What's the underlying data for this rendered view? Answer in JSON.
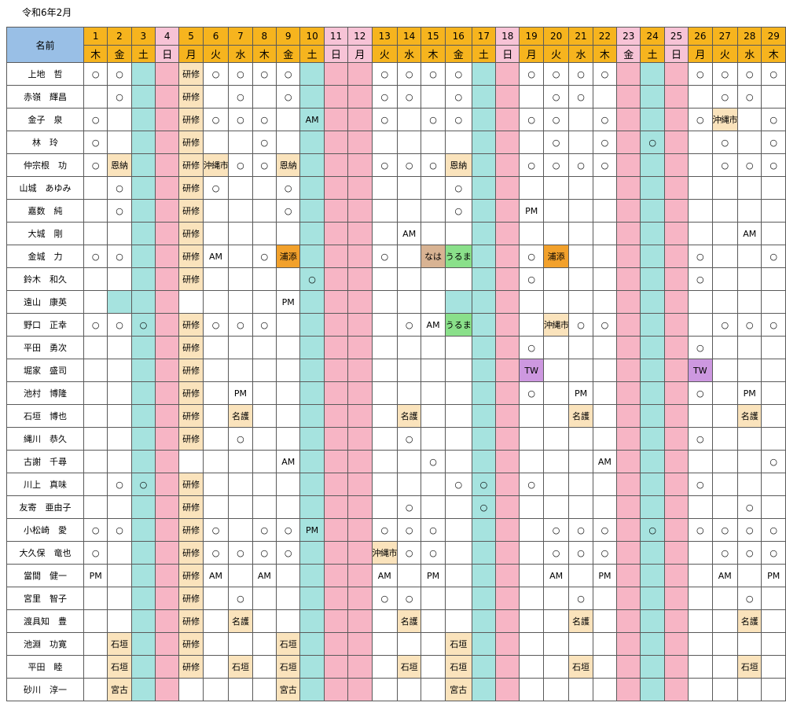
{
  "title": "令和6年2月",
  "header_label": "名前",
  "days": [
    {
      "num": "1",
      "wd": "木"
    },
    {
      "num": "2",
      "wd": "金"
    },
    {
      "num": "3",
      "wd": "土",
      "type": "sat"
    },
    {
      "num": "4",
      "wd": "日",
      "type": "sun"
    },
    {
      "num": "5",
      "wd": "月"
    },
    {
      "num": "6",
      "wd": "火"
    },
    {
      "num": "7",
      "wd": "水"
    },
    {
      "num": "8",
      "wd": "木"
    },
    {
      "num": "9",
      "wd": "金"
    },
    {
      "num": "10",
      "wd": "土",
      "type": "sat"
    },
    {
      "num": "11",
      "wd": "日",
      "type": "sun"
    },
    {
      "num": "12",
      "wd": "月",
      "type": "sun"
    },
    {
      "num": "13",
      "wd": "火"
    },
    {
      "num": "14",
      "wd": "水"
    },
    {
      "num": "15",
      "wd": "木"
    },
    {
      "num": "16",
      "wd": "金"
    },
    {
      "num": "17",
      "wd": "土",
      "type": "sat"
    },
    {
      "num": "18",
      "wd": "日",
      "type": "sun"
    },
    {
      "num": "19",
      "wd": "月"
    },
    {
      "num": "20",
      "wd": "火"
    },
    {
      "num": "21",
      "wd": "水"
    },
    {
      "num": "22",
      "wd": "木"
    },
    {
      "num": "23",
      "wd": "金",
      "type": "sun"
    },
    {
      "num": "24",
      "wd": "土",
      "type": "sat"
    },
    {
      "num": "25",
      "wd": "日",
      "type": "sun"
    },
    {
      "num": "26",
      "wd": "月"
    },
    {
      "num": "27",
      "wd": "火"
    },
    {
      "num": "28",
      "wd": "水"
    },
    {
      "num": "29",
      "wd": "木"
    }
  ],
  "legend_colors": {
    "header": "#f6b41e",
    "name_header": "#99bfe6",
    "saturday": "#a6e3df",
    "holiday": "#f7b5c5",
    "training": "#fae3bc",
    "urasoe": "#f2a12c",
    "uruma": "#8ae08a",
    "naha": "#d8b393",
    "telework": "#cd98e0"
  },
  "rows": [
    {
      "name": "上地　哲",
      "cells": {
        "1": "○",
        "2": "○",
        "5": "研修",
        "6": "○",
        "7": "○",
        "8": "○",
        "9": "○",
        "13": "○",
        "14": "○",
        "15": "○",
        "16": "○",
        "19": "○",
        "20": "○",
        "21": "○",
        "22": "○",
        "26": "○",
        "27": "○",
        "28": "○",
        "29": "○"
      }
    },
    {
      "name": "赤嶺　輝昌",
      "cells": {
        "2": "○",
        "5": "研修",
        "7": "○",
        "9": "○",
        "13": "○",
        "14": "○",
        "16": "○",
        "20": "○",
        "21": "○",
        "27": "○",
        "28": "○"
      }
    },
    {
      "name": "金子　泉",
      "cells": {
        "1": "○",
        "5": "研修",
        "6": "○",
        "7": "○",
        "8": "○",
        "10": "AM",
        "13": "○",
        "15": "○",
        "16": "○",
        "19": "○",
        "20": "○",
        "22": "○",
        "26": "○",
        "27": "沖縄市",
        "29": "○"
      }
    },
    {
      "name": "林　玲",
      "cells": {
        "1": "○",
        "5": "研修",
        "8": "○",
        "20": "○",
        "22": "○",
        "24": "○",
        "27": "○",
        "29": "○"
      }
    },
    {
      "name": "仲宗根　功",
      "cells": {
        "1": "○",
        "2": "恩納",
        "5": "研修",
        "6": "沖縄市",
        "7": "○",
        "8": "○",
        "9": "恩納",
        "13": "○",
        "14": "○",
        "15": "○",
        "16": "恩納",
        "19": "○",
        "20": "○",
        "21": "○",
        "22": "○",
        "27": "○",
        "28": "○",
        "29": "○"
      }
    },
    {
      "name": "山城　あゆみ",
      "cells": {
        "2": "○",
        "5": "研修",
        "6": "○",
        "9": "○",
        "16": "○"
      }
    },
    {
      "name": "嘉数　純",
      "cells": {
        "2": "○",
        "5": "研修",
        "9": "○",
        "16": "○",
        "19": "PM"
      }
    },
    {
      "name": "大城　剛",
      "cells": {
        "5": "研修",
        "14": "AM",
        "28": "AM"
      }
    },
    {
      "name": "金城　力",
      "cells": {
        "1": "○",
        "2": "○",
        "5": "研修",
        "6": "AM",
        "8": "○",
        "9": "浦添",
        "13": "○",
        "15": "なは",
        "16": "うるま",
        "19": "○",
        "20": "浦添",
        "26": "○",
        "29": "○"
      }
    },
    {
      "name": "鈴木　和久",
      "cells": {
        "5": "研修",
        "10": "○",
        "19": "○",
        "26": "○"
      }
    },
    {
      "name": "遠山　康英",
      "cells": {
        "9": "PM"
      },
      "tint": {
        "2": "sat",
        "4": "sun",
        "5": "plain",
        "16": "sat"
      }
    },
    {
      "name": "野口　正幸",
      "cells": {
        "1": "○",
        "2": "○",
        "3": "○",
        "5": "研修",
        "6": "○",
        "7": "○",
        "8": "○",
        "14": "○",
        "15": "AM",
        "16": "うるま",
        "20": "沖縄市",
        "21": "○",
        "22": "○",
        "27": "○",
        "28": "○",
        "29": "○"
      }
    },
    {
      "name": "平田　勇次",
      "cells": {
        "5": "研修",
        "19": "○",
        "26": "○"
      }
    },
    {
      "name": "堀家　盛司",
      "cells": {
        "5": "研修",
        "19": "TW",
        "26": "TW"
      }
    },
    {
      "name": "池村　博隆",
      "cells": {
        "5": "研修",
        "7": "PM",
        "19": "○",
        "21": "PM",
        "26": "○",
        "28": "PM"
      }
    },
    {
      "name": "石垣　博也",
      "cells": {
        "5": "研修",
        "7": "名護",
        "14": "名護",
        "21": "名護",
        "28": "名護"
      }
    },
    {
      "name": "縄川　恭久",
      "cells": {
        "5": "研修",
        "7": "○",
        "14": "○",
        "26": "○"
      }
    },
    {
      "name": "古謝　千尋",
      "cells": {
        "9": "AM",
        "15": "○",
        "22": "AM",
        "29": "○"
      },
      "tint": {
        "5": "plain"
      }
    },
    {
      "name": "川上　真味",
      "cells": {
        "2": "○",
        "3": "○",
        "5": "研修",
        "16": "○",
        "17": "○",
        "19": "○",
        "26": "○"
      }
    },
    {
      "name": "友寄　亜由子",
      "cells": {
        "5": "研修",
        "14": "○",
        "17": "○",
        "28": "○"
      }
    },
    {
      "name": "小松崎　愛",
      "cells": {
        "1": "○",
        "2": "○",
        "5": "研修",
        "6": "○",
        "8": "○",
        "9": "○",
        "10": "PM",
        "13": "○",
        "14": "○",
        "15": "○",
        "20": "○",
        "21": "○",
        "22": "○",
        "24": "○",
        "26": "○",
        "27": "○",
        "28": "○",
        "29": "○"
      }
    },
    {
      "name": "大久保　竜也",
      "cells": {
        "1": "○",
        "5": "研修",
        "6": "○",
        "7": "○",
        "8": "○",
        "9": "○",
        "13": "沖縄市",
        "14": "○",
        "15": "○",
        "20": "○",
        "21": "○",
        "22": "○",
        "27": "○",
        "28": "○",
        "29": "○"
      }
    },
    {
      "name": "當間　健一",
      "cells": {
        "1": "PM",
        "5": "研修",
        "6": "AM",
        "8": "AM",
        "13": "AM",
        "15": "PM",
        "20": "AM",
        "22": "PM",
        "27": "AM",
        "29": "PM"
      }
    },
    {
      "name": "宮里　智子",
      "cells": {
        "5": "研修",
        "7": "○",
        "13": "○",
        "14": "○",
        "21": "○",
        "28": "○"
      }
    },
    {
      "name": "渡具知　豊",
      "cells": {
        "5": "研修",
        "7": "名護",
        "14": "名護",
        "21": "名護",
        "28": "名護"
      }
    },
    {
      "name": "池淵　功寛",
      "cells": {
        "2": "石垣",
        "5": "研修",
        "9": "石垣",
        "16": "石垣"
      }
    },
    {
      "name": "平田　睦",
      "cells": {
        "2": "石垣",
        "5": "研修",
        "7": "石垣",
        "9": "石垣",
        "14": "石垣",
        "16": "石垣",
        "21": "石垣",
        "28": "石垣"
      }
    },
    {
      "name": "砂川　淳一",
      "cells": {
        "2": "宮古",
        "9": "宮古",
        "16": "宮古"
      }
    }
  ]
}
